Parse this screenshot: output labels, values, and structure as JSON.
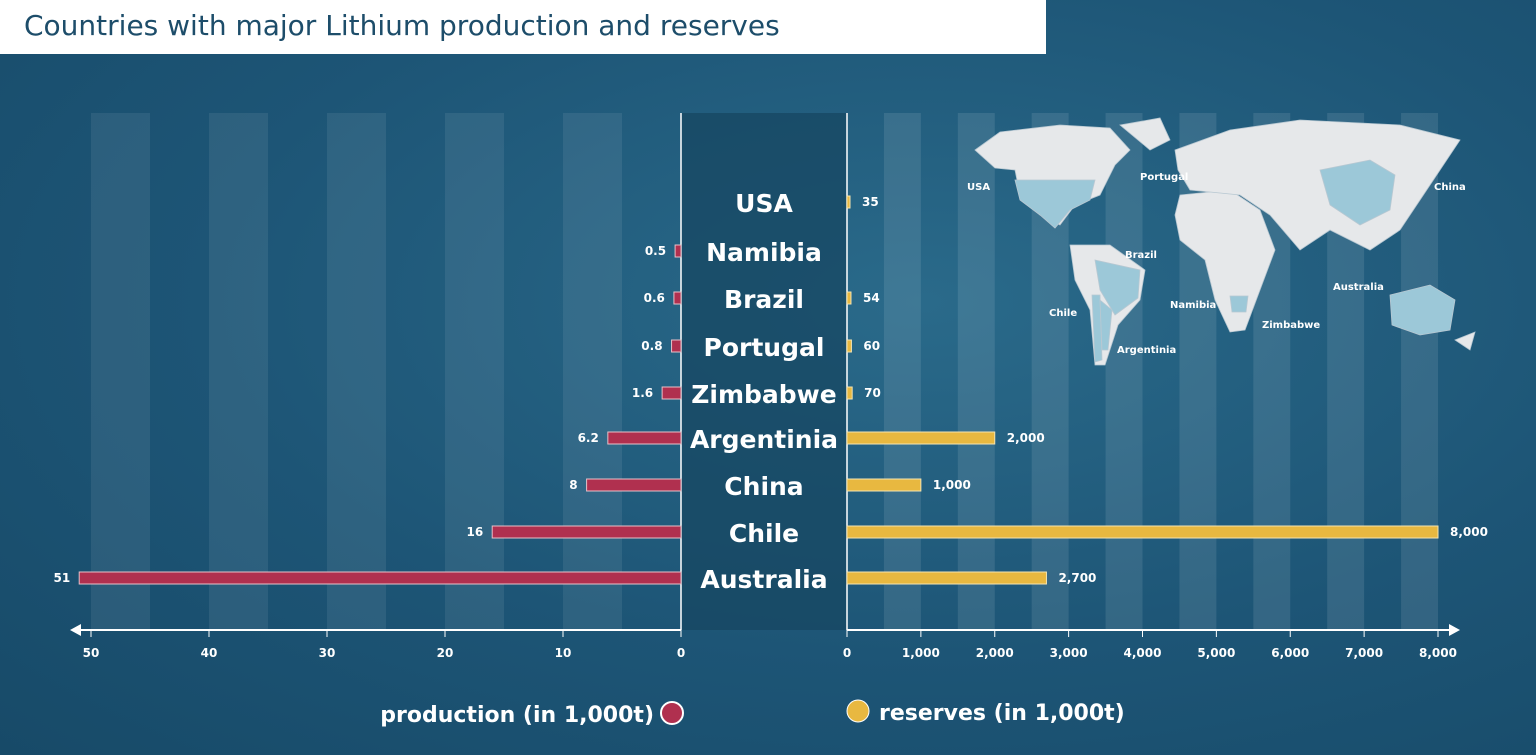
{
  "title": "Countries with major Lithium production and reserves",
  "chart_data": {
    "type": "bar",
    "title": "Countries with major Lithium production and reserves",
    "categories": [
      "USA",
      "Namibia",
      "Brazil",
      "Portugal",
      "Zimbabwe",
      "Argentinia",
      "China",
      "Chile",
      "Australia"
    ],
    "series": [
      {
        "name": "production (in 1,000t)",
        "color": "#b0304f",
        "values": [
          null,
          0.5,
          0.6,
          0.8,
          1.6,
          6.2,
          8,
          16,
          51
        ],
        "labels": [
          "",
          "0.5",
          "0.6",
          "0.8",
          "1.6",
          "6.2",
          "8",
          "16",
          "51"
        ],
        "xlim": [
          0,
          50
        ],
        "ticks": [
          "0",
          "10",
          "20",
          "30",
          "40",
          "50"
        ],
        "direction": "left"
      },
      {
        "name": "reserves (in 1,000t)",
        "color": "#e8b840",
        "values": [
          35,
          null,
          54,
          60,
          70,
          2000,
          1000,
          8000,
          2700
        ],
        "labels": [
          "35",
          "",
          "54",
          "60",
          "70",
          "2,000",
          "1,000",
          "8,000",
          "2,700"
        ],
        "xlim": [
          0,
          8000
        ],
        "ticks": [
          "0",
          "1,000",
          "2,000",
          "3,000",
          "4,000",
          "5,000",
          "6,000",
          "7,000",
          "8,000"
        ],
        "direction": "right"
      }
    ],
    "legend": [
      "production (in 1,000t)",
      "reserves (in 1,000t)"
    ],
    "legend_placement": "bottom",
    "map_labels": [
      "USA",
      "Portugal",
      "China",
      "Brazil",
      "Chile",
      "Namibia",
      "Argentinia",
      "Zimbabwe",
      "Australia"
    ]
  }
}
